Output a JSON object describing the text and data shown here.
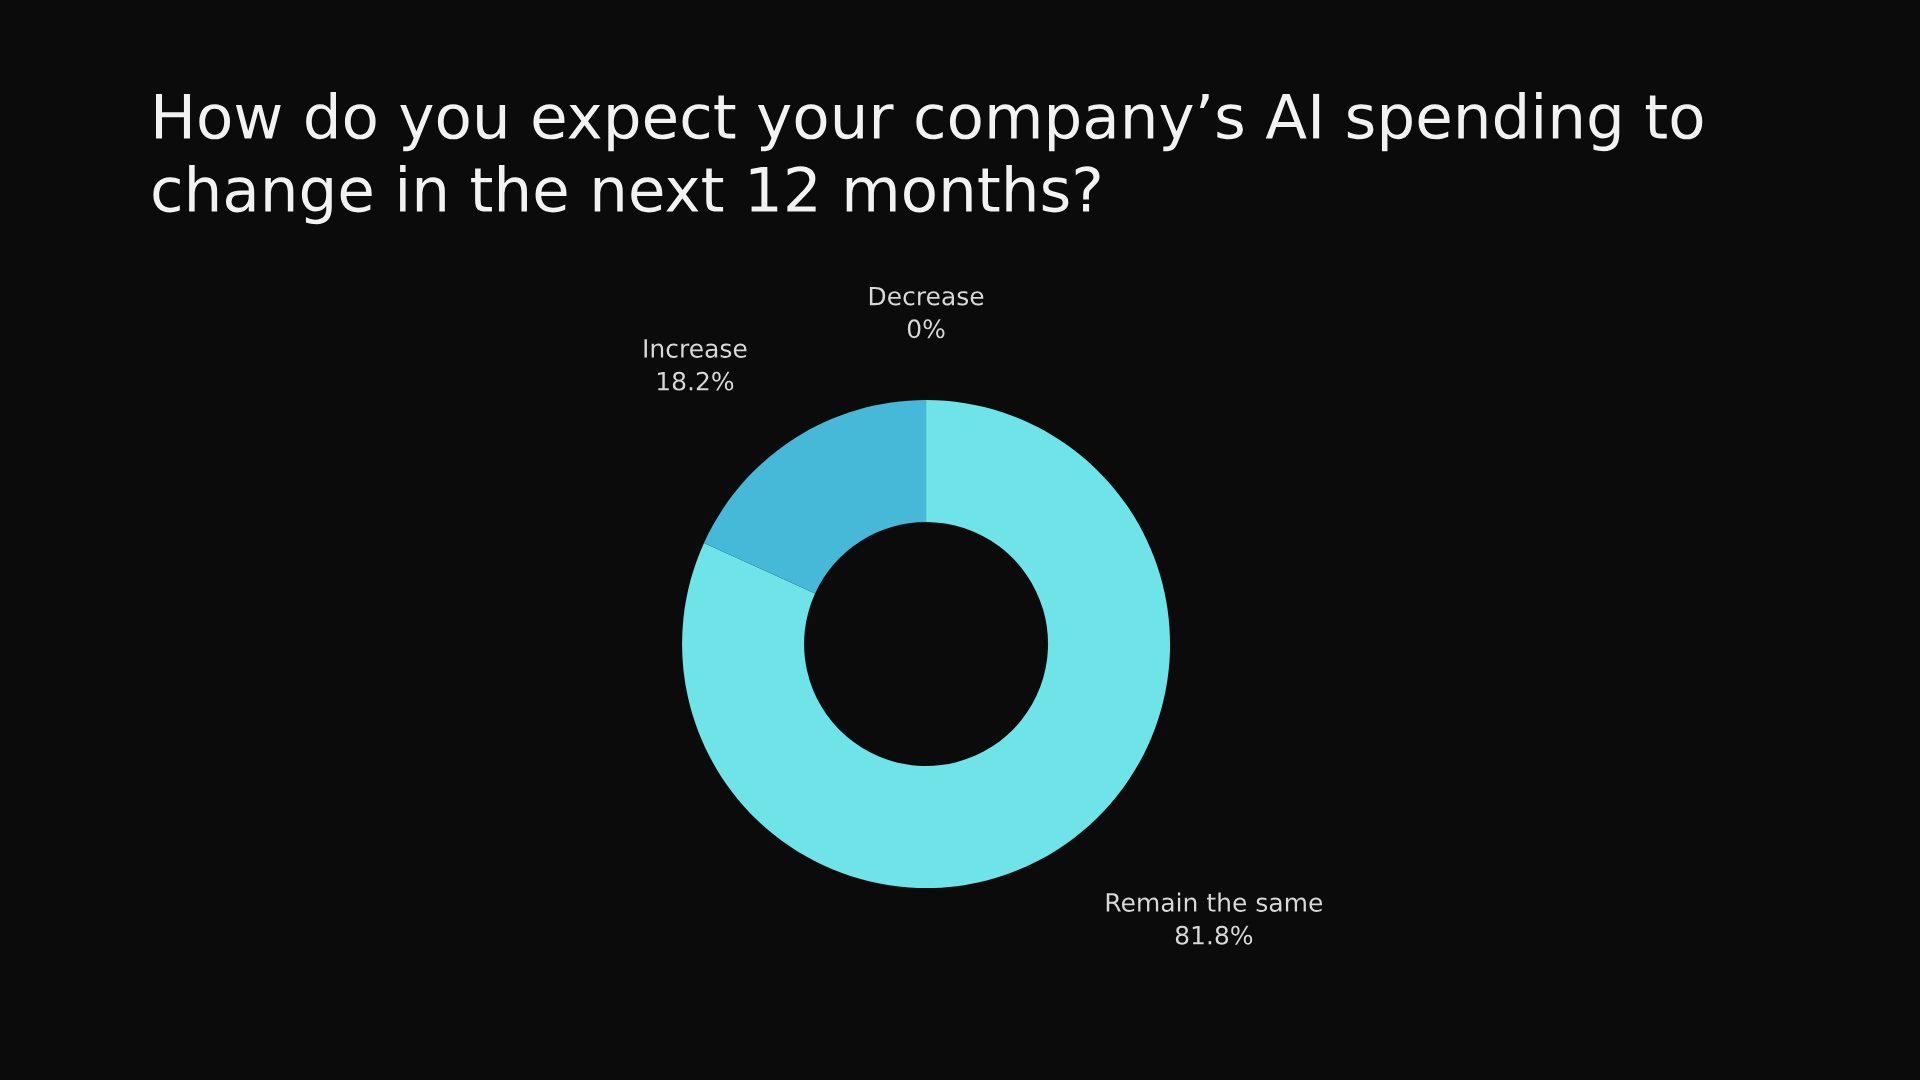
{
  "chart_data": {
    "type": "donut",
    "title": "How do you expect your company’s AI spending to\nchange in the next 12 months?",
    "categories": [
      "Decrease",
      "Remain the same",
      "Increase"
    ],
    "values": [
      0,
      81.8,
      18.2
    ],
    "colors": [
      "#2b8fc0",
      "#6ee4e9",
      "#45b9d7"
    ],
    "value_labels": [
      "0%",
      "81.8%",
      "18.2%"
    ]
  }
}
